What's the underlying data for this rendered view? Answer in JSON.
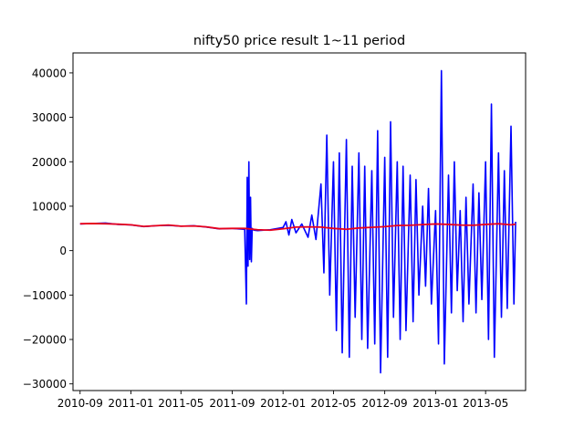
{
  "chart_data": {
    "type": "line",
    "title": "nifty50 price result 1~11 period",
    "xlabel": "",
    "ylabel": "",
    "x_range": [
      "2010-08-15",
      "2013-08-05"
    ],
    "ylim": [
      -31500,
      44500
    ],
    "x_ticks": [
      {
        "value": "2010-09-01",
        "label": "2010-09"
      },
      {
        "value": "2011-01-01",
        "label": "2011-01"
      },
      {
        "value": "2011-05-01",
        "label": "2011-05"
      },
      {
        "value": "2011-09-01",
        "label": "2011-09"
      },
      {
        "value": "2012-01-01",
        "label": "2012-01"
      },
      {
        "value": "2012-05-01",
        "label": "2012-05"
      },
      {
        "value": "2012-09-01",
        "label": "2012-09"
      },
      {
        "value": "2013-01-01",
        "label": "2013-01"
      },
      {
        "value": "2013-05-01",
        "label": "2013-05"
      }
    ],
    "y_ticks": [
      {
        "value": -30000,
        "label": "−30000"
      },
      {
        "value": -20000,
        "label": "−20000"
      },
      {
        "value": -10000,
        "label": "−10000"
      },
      {
        "value": 0,
        "label": "0"
      },
      {
        "value": 10000,
        "label": "10000"
      },
      {
        "value": 20000,
        "label": "20000"
      },
      {
        "value": 30000,
        "label": "30000"
      },
      {
        "value": 40000,
        "label": "40000"
      }
    ],
    "grid": false,
    "legend": "none",
    "series": [
      {
        "color": "#0000ff",
        "x": [
          "2010-09-01",
          "2010-10-01",
          "2010-11-01",
          "2010-12-01",
          "2011-01-01",
          "2011-02-01",
          "2011-03-01",
          "2011-04-01",
          "2011-05-01",
          "2011-06-01",
          "2011-07-01",
          "2011-08-01",
          "2011-09-01",
          "2011-10-01",
          "2011-10-05",
          "2011-10-07",
          "2011-10-09",
          "2011-10-11",
          "2011-10-13",
          "2011-10-15",
          "2011-10-17",
          "2011-10-19",
          "2011-10-21",
          "2011-10-23",
          "2011-11-01",
          "2011-12-01",
          "2012-01-01",
          "2012-01-08",
          "2012-01-15",
          "2012-01-22",
          "2012-02-01",
          "2012-02-15",
          "2012-03-01",
          "2012-03-10",
          "2012-03-20",
          "2012-04-01",
          "2012-04-08",
          "2012-04-15",
          "2012-04-22",
          "2012-05-01",
          "2012-05-08",
          "2012-05-15",
          "2012-05-22",
          "2012-06-01",
          "2012-06-08",
          "2012-06-15",
          "2012-06-22",
          "2012-07-01",
          "2012-07-08",
          "2012-07-15",
          "2012-07-22",
          "2012-08-01",
          "2012-08-08",
          "2012-08-15",
          "2012-08-22",
          "2012-09-01",
          "2012-09-08",
          "2012-09-15",
          "2012-09-22",
          "2012-10-01",
          "2012-10-08",
          "2012-10-15",
          "2012-10-22",
          "2012-11-01",
          "2012-11-08",
          "2012-11-15",
          "2012-11-22",
          "2012-12-01",
          "2012-12-08",
          "2012-12-15",
          "2012-12-22",
          "2013-01-01",
          "2013-01-08",
          "2013-01-15",
          "2013-01-22",
          "2013-02-01",
          "2013-02-08",
          "2013-02-15",
          "2013-02-22",
          "2013-03-01",
          "2013-03-08",
          "2013-03-15",
          "2013-03-22",
          "2013-04-01",
          "2013-04-08",
          "2013-04-15",
          "2013-04-22",
          "2013-05-01",
          "2013-05-08",
          "2013-05-15",
          "2013-05-22",
          "2013-06-01",
          "2013-06-08",
          "2013-06-15",
          "2013-06-22",
          "2013-07-01",
          "2013-07-08",
          "2013-07-12"
        ],
        "y": [
          6000,
          6100,
          6200,
          5900,
          5800,
          5400,
          5600,
          5700,
          5500,
          5600,
          5300,
          4900,
          5000,
          4800,
          -12000,
          16500,
          -3500,
          20000,
          -2000,
          12000,
          -2500,
          5000,
          4800,
          4600,
          4500,
          4700,
          5200,
          6500,
          3500,
          7000,
          4000,
          6000,
          3000,
          8000,
          2500,
          15000,
          -5000,
          26000,
          -10000,
          20000,
          -18000,
          22000,
          -23000,
          25000,
          -24000,
          19000,
          -15000,
          22000,
          -20000,
          19000,
          -22000,
          18000,
          -21000,
          27000,
          -27500,
          21000,
          -24000,
          29000,
          -15000,
          20000,
          -20000,
          19000,
          -18000,
          17000,
          -16000,
          16000,
          -10000,
          10000,
          -8000,
          14000,
          -12000,
          9000,
          -21000,
          40500,
          -25500,
          17000,
          -14000,
          20000,
          -9000,
          9000,
          -16000,
          12000,
          -12000,
          15000,
          -14000,
          13000,
          -11000,
          20000,
          -20000,
          33000,
          -24000,
          22000,
          -15000,
          18000,
          -13000,
          28000,
          -12000,
          6500
        ]
      },
      {
        "color": "#e8001c",
        "x": [
          "2010-09-01",
          "2010-10-01",
          "2010-11-01",
          "2010-12-01",
          "2011-01-01",
          "2011-02-01",
          "2011-03-01",
          "2011-04-01",
          "2011-05-01",
          "2011-06-01",
          "2011-07-01",
          "2011-08-01",
          "2011-09-01",
          "2011-10-01",
          "2011-11-01",
          "2011-12-01",
          "2012-01-01",
          "2012-02-01",
          "2012-03-01",
          "2012-04-01",
          "2012-05-01",
          "2012-06-01",
          "2012-07-01",
          "2012-08-01",
          "2012-09-01",
          "2012-10-01",
          "2012-11-01",
          "2012-12-01",
          "2013-01-01",
          "2013-02-01",
          "2013-03-01",
          "2013-04-01",
          "2013-05-01",
          "2013-06-01",
          "2013-07-01",
          "2013-07-12"
        ],
        "y": [
          6050,
          6100,
          6050,
          5950,
          5800,
          5450,
          5600,
          5750,
          5500,
          5550,
          5350,
          4950,
          5000,
          5000,
          4700,
          4600,
          4900,
          5300,
          5350,
          5300,
          5000,
          4800,
          5100,
          5250,
          5400,
          5650,
          5700,
          5850,
          6000,
          5900,
          5750,
          5700,
          5900,
          6050,
          5800,
          5950
        ]
      }
    ]
  }
}
